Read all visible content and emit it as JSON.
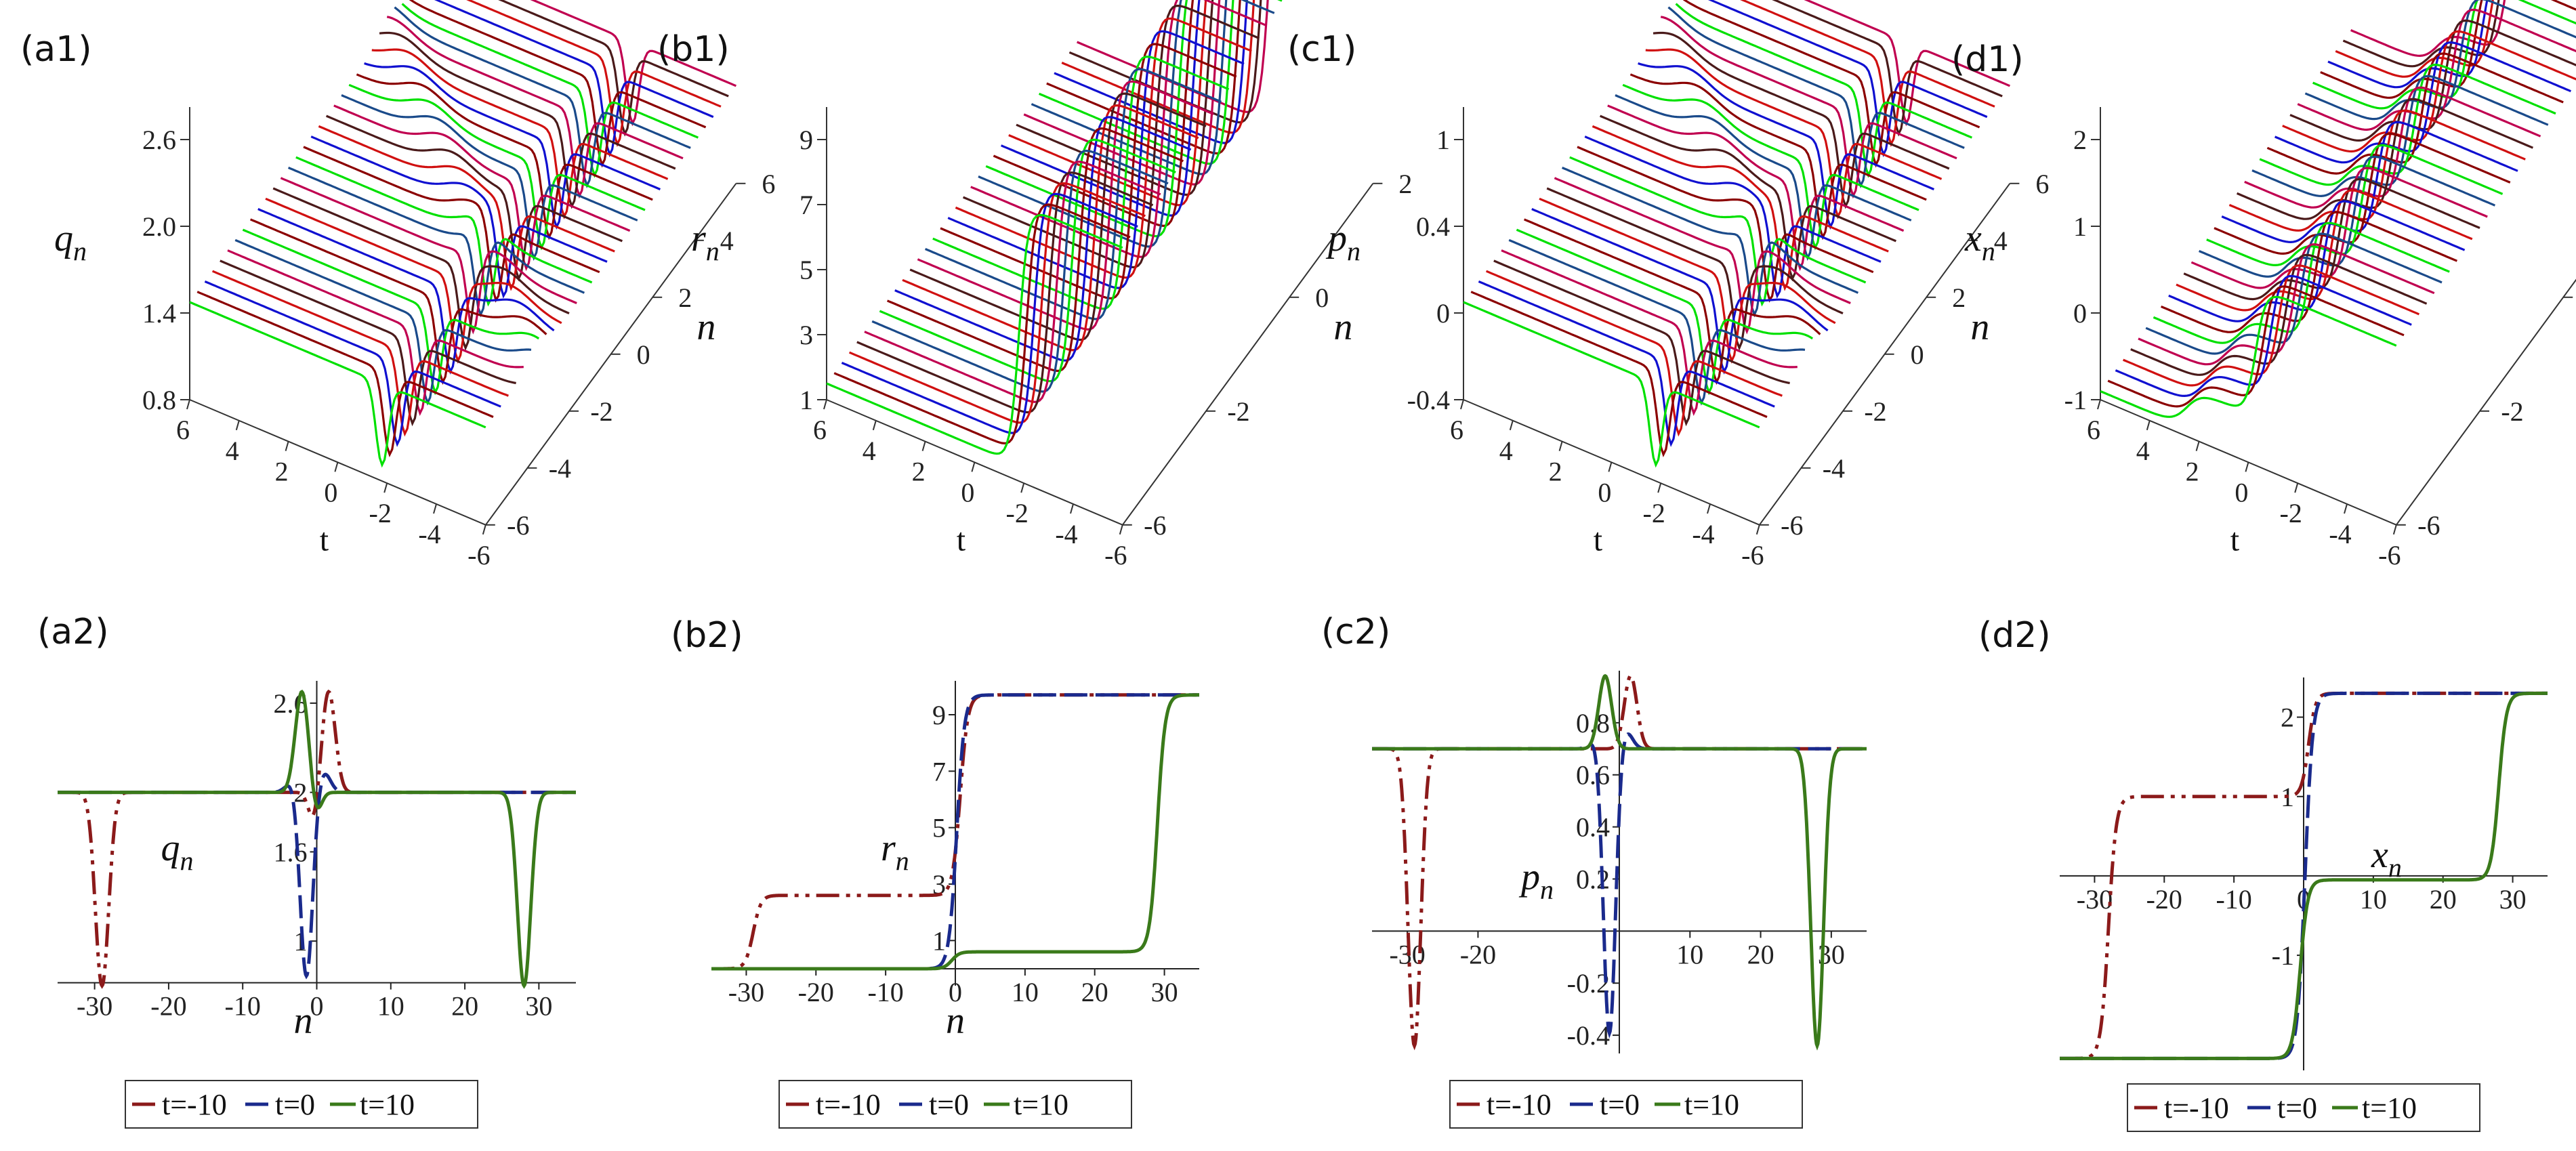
{
  "palette": [
    "#00e000",
    "#8b0000",
    "#1010d0",
    "#d01010",
    "#4a1a1a",
    "#c00050",
    "#1a4a8a"
  ],
  "legend": {
    "entries": [
      {
        "label": "t=-10",
        "color": "#8b1a1a",
        "dash": "dashdot"
      },
      {
        "label": "t=0",
        "color": "#1a2a8c",
        "dash": "dash"
      },
      {
        "label": "t=10",
        "color": "#3a7a1a",
        "dash": "solid"
      }
    ]
  },
  "chart_data": [
    {
      "id": "a1",
      "type": "surface",
      "panel_label": "(a1)",
      "zlabel": "q",
      "zlabel_sub": "n",
      "xlabel": "t",
      "ylabel": "n",
      "z_ticks": [
        "2.6",
        "2.0",
        "1.4",
        "0.8"
      ],
      "t_ticks": [
        "6",
        "4",
        "2",
        "0",
        "-2",
        "-4",
        "-6"
      ],
      "n_ticks": [
        "6",
        "4",
        "2",
        "0",
        "-2",
        "-4",
        "-6"
      ],
      "base": 2.0,
      "shape": "dip_peak"
    },
    {
      "id": "b1",
      "type": "surface",
      "panel_label": "(b1)",
      "zlabel": "r",
      "zlabel_sub": "n",
      "xlabel": "t",
      "ylabel": "n",
      "z_ticks": [
        "9",
        "7",
        "5",
        "3",
        "1"
      ],
      "t_ticks": [
        "6",
        "4",
        "2",
        "0",
        "-2",
        "-4",
        "-6"
      ],
      "n_ticks": [
        "2",
        "0",
        "-2",
        "-6"
      ],
      "shape": "step"
    },
    {
      "id": "c1",
      "type": "surface",
      "panel_label": "(c1)",
      "zlabel": "p",
      "zlabel_sub": "n",
      "xlabel": "t",
      "ylabel": "n",
      "z_ticks": [
        "1",
        "0.4",
        "0",
        "-0.4"
      ],
      "t_ticks": [
        "6",
        "4",
        "2",
        "0",
        "-2",
        "-4",
        "-6"
      ],
      "n_ticks": [
        "6",
        "4",
        "2",
        "0",
        "-2",
        "-4",
        "-6"
      ],
      "base": 0.7,
      "shape": "dip_peak"
    },
    {
      "id": "d1",
      "type": "surface",
      "panel_label": "(d1)",
      "zlabel": "x",
      "zlabel_sub": "n",
      "xlabel": "t",
      "ylabel": "n",
      "z_ticks": [
        "2",
        "1",
        "0",
        "-1"
      ],
      "t_ticks": [
        "6",
        "4",
        "2",
        "0",
        "-2",
        "-4",
        "-6"
      ],
      "n_ticks": [
        "6",
        "2",
        "-2",
        "-6"
      ],
      "shape": "double_step"
    },
    {
      "id": "a2",
      "type": "line",
      "panel_label": "(a2)",
      "ylabel": "q",
      "ylabel_sub": "n",
      "xlabel": "n",
      "xlim": [
        -35,
        35
      ],
      "ylim": [
        0.7,
        2.75
      ],
      "y_axis_at": 0,
      "x_ticks": [
        -30,
        -20,
        -10,
        0,
        10,
        20,
        30
      ],
      "y_ticks": [
        1.0,
        1.6,
        2.0,
        2.6
      ],
      "x_ticks_at": 0.72,
      "series": [
        {
          "name": "t=-10",
          "dash": "dashdot",
          "base": 2.0,
          "features": [
            {
              "c": -29,
              "a": -1.3,
              "w": 0.9
            },
            {
              "c": 1.6,
              "a": 0.68,
              "w": 0.9
            },
            {
              "c": -0.4,
              "a": -0.2,
              "w": 0.7
            }
          ]
        },
        {
          "name": "t=0",
          "dash": "dash",
          "base": 2.0,
          "features": [
            {
              "c": -1.4,
              "a": -1.25,
              "w": 0.85
            },
            {
              "c": 0.9,
              "a": 0.14,
              "w": 0.9
            },
            {
              "c": -3.2,
              "a": 0.08,
              "w": 0.9
            }
          ]
        },
        {
          "name": "t=10",
          "dash": "solid",
          "base": 2.0,
          "features": [
            {
              "c": 28,
              "a": -1.3,
              "w": 0.9
            },
            {
              "c": -2.0,
              "a": 0.68,
              "w": 0.9
            },
            {
              "c": -0.1,
              "a": -0.15,
              "w": 0.7
            }
          ]
        }
      ]
    },
    {
      "id": "b2",
      "type": "line",
      "panel_label": "(b2)",
      "ylabel": "r",
      "ylabel_sub": "n",
      "xlabel": "n",
      "xlim": [
        -35,
        35
      ],
      "ylim": [
        -0.6,
        10.2
      ],
      "y_axis_at": 0,
      "x_ticks": [
        -30,
        -20,
        -10,
        0,
        10,
        20,
        30
      ],
      "y_ticks": [
        1,
        3,
        5,
        7,
        9
      ],
      "x_ticks_at": 0,
      "series": [
        {
          "name": "t=-10",
          "dash": "dashdot",
          "levels": [
            0,
            2.6,
            9.7
          ],
          "steps": [
            {
              "c": -29,
              "w": 0.55
            },
            {
              "c": 0.7,
              "w": 0.55
            }
          ]
        },
        {
          "name": "t=0",
          "dash": "dash",
          "levels": [
            0,
            9.7
          ],
          "steps": [
            {
              "c": 0.2,
              "w": 0.55
            }
          ]
        },
        {
          "name": "t=10",
          "dash": "solid",
          "levels": [
            0,
            0.6,
            9.7
          ],
          "steps": [
            {
              "c": -0.5,
              "w": 0.55
            },
            {
              "c": 29,
              "w": 0.55
            }
          ]
        }
      ]
    },
    {
      "id": "c2",
      "type": "line",
      "panel_label": "(c2)",
      "ylabel": "p",
      "ylabel_sub": "n",
      "xlabel": "n",
      "xlim": [
        -35,
        35
      ],
      "ylim": [
        -0.47,
        1.0
      ],
      "y_axis_at": 0,
      "x_ticks": [
        -30,
        -20,
        10,
        20,
        30
      ],
      "y_ticks": [
        -0.4,
        -0.2,
        0.2,
        0.4,
        0.6,
        0.8
      ],
      "x_ticks_at": 0,
      "series": [
        {
          "name": "t=-10",
          "dash": "dashdot",
          "base": 0.7,
          "features": [
            {
              "c": -29,
              "a": -1.14,
              "w": 0.9
            },
            {
              "c": 1.6,
              "a": 0.28,
              "w": 0.9
            }
          ]
        },
        {
          "name": "t=0",
          "dash": "dash",
          "base": 0.7,
          "features": [
            {
              "c": -1.4,
              "a": -1.1,
              "w": 0.85
            },
            {
              "c": 0.9,
              "a": 0.07,
              "w": 0.9
            },
            {
              "c": -3.2,
              "a": 0.04,
              "w": 0.9
            }
          ]
        },
        {
          "name": "t=10",
          "dash": "solid",
          "base": 0.7,
          "features": [
            {
              "c": 28,
              "a": -1.14,
              "w": 0.9
            },
            {
              "c": -2.0,
              "a": 0.28,
              "w": 0.9
            }
          ]
        }
      ]
    },
    {
      "id": "d2",
      "type": "line",
      "panel_label": "(d2)",
      "ylabel": "x",
      "ylabel_sub": "n",
      "xlabel": "n",
      "xlim": [
        -35,
        35
      ],
      "ylim": [
        -2.45,
        2.5
      ],
      "y_axis_at": 0,
      "x_ticks": [
        -30,
        -20,
        -10,
        0,
        10,
        20,
        30
      ],
      "y_ticks": [
        -1,
        1,
        2
      ],
      "x_ticks_at": 0,
      "series": [
        {
          "name": "t=-10",
          "dash": "dashdot",
          "levels": [
            -2.3,
            1.0,
            2.3
          ],
          "steps": [
            {
              "c": -28,
              "w": 0.55
            },
            {
              "c": 0.7,
              "w": 0.5
            }
          ]
        },
        {
          "name": "t=0",
          "dash": "dash",
          "levels": [
            -2.3,
            2.3
          ],
          "steps": [
            {
              "c": 0.2,
              "w": 0.55
            }
          ]
        },
        {
          "name": "t=10",
          "dash": "solid",
          "levels": [
            -2.3,
            -0.05,
            2.3
          ],
          "steps": [
            {
              "c": -0.5,
              "w": 0.55
            },
            {
              "c": 28,
              "w": 0.55
            }
          ]
        }
      ]
    }
  ]
}
